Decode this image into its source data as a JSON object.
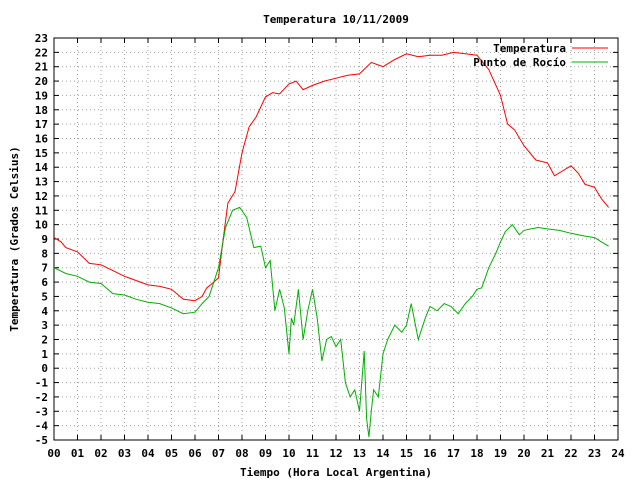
{
  "chart_data": {
    "type": "line",
    "title": "Temperatura 10/11/2009",
    "xlabel": "Tiempo (Hora Local Argentina)",
    "ylabel": "Temperatura (Grados Celsius)",
    "xlim": [
      0,
      24
    ],
    "ylim": [
      -5,
      23
    ],
    "xticks": [
      "00",
      "01",
      "02",
      "03",
      "04",
      "05",
      "06",
      "07",
      "08",
      "09",
      "10",
      "11",
      "12",
      "13",
      "14",
      "15",
      "16",
      "17",
      "18",
      "19",
      "20",
      "21",
      "22",
      "23",
      "24"
    ],
    "yticks": [
      -5,
      -4,
      -3,
      -2,
      -1,
      0,
      1,
      2,
      3,
      4,
      5,
      6,
      7,
      8,
      9,
      10,
      11,
      12,
      13,
      14,
      15,
      16,
      17,
      18,
      19,
      20,
      21,
      22,
      23
    ],
    "grid": true,
    "legend_position": "top-right",
    "series": [
      {
        "name": "Temperatura",
        "color": "#ff0000",
        "x": [
          0,
          0.3,
          0.5,
          1,
          1.5,
          2,
          2.5,
          3,
          3.5,
          4,
          4.5,
          5,
          5.5,
          6,
          6.3,
          6.5,
          6.8,
          7,
          7.2,
          7.4,
          7.7,
          8,
          8.3,
          8.6,
          9,
          9.3,
          9.6,
          10,
          10.3,
          10.6,
          11,
          11.5,
          12,
          12.5,
          13,
          13.5,
          14,
          14.5,
          15,
          15.5,
          16,
          16.5,
          17,
          17.5,
          18,
          18.5,
          19,
          19.3,
          19.6,
          20,
          20.5,
          21,
          21.3,
          21.6,
          22,
          22.3,
          22.6,
          23,
          23.3,
          23.6
        ],
        "y": [
          9.1,
          8.8,
          8.4,
          8.1,
          7.3,
          7.2,
          6.8,
          6.4,
          6.1,
          5.8,
          5.7,
          5.5,
          4.8,
          4.7,
          5.0,
          5.6,
          6.0,
          6.3,
          9.0,
          11.5,
          12.3,
          15.0,
          16.8,
          17.5,
          18.9,
          19.2,
          19.1,
          19.8,
          20.0,
          19.4,
          19.7,
          20.0,
          20.2,
          20.4,
          20.5,
          21.3,
          21.0,
          21.5,
          21.9,
          21.7,
          21.8,
          21.8,
          22.0,
          21.9,
          21.8,
          20.8,
          19.0,
          17.0,
          16.6,
          15.5,
          14.5,
          14.3,
          13.4,
          13.7,
          14.1,
          13.6,
          12.8,
          12.6,
          11.8,
          11.2
        ]
      },
      {
        "name": "Punto de Rocío",
        "color": "#00b000",
        "x": [
          0,
          0.5,
          1,
          1.5,
          2,
          2.5,
          3,
          3.5,
          4,
          4.5,
          5,
          5.5,
          6,
          6.3,
          6.6,
          7,
          7.3,
          7.6,
          7.9,
          8.2,
          8.5,
          8.8,
          9,
          9.2,
          9.4,
          9.6,
          9.8,
          10,
          10.1,
          10.2,
          10.4,
          10.6,
          10.8,
          11,
          11.2,
          11.4,
          11.6,
          11.8,
          12,
          12.2,
          12.4,
          12.6,
          12.8,
          13,
          13.2,
          13.3,
          13.4,
          13.5,
          13.6,
          13.8,
          14,
          14.2,
          14.5,
          14.8,
          15,
          15.2,
          15.5,
          15.8,
          16,
          16.3,
          16.6,
          16.9,
          17.2,
          17.5,
          17.8,
          18,
          18.2,
          18.5,
          18.8,
          19,
          19.2,
          19.5,
          19.8,
          20,
          20.3,
          20.6,
          21,
          21.5,
          22,
          22.3,
          22.6,
          23,
          23.3,
          23.6
        ],
        "y": [
          7.0,
          6.6,
          6.4,
          6.0,
          5.9,
          5.2,
          5.1,
          4.8,
          4.6,
          4.5,
          4.2,
          3.8,
          3.9,
          4.5,
          5.0,
          7.0,
          9.8,
          11.0,
          11.2,
          10.5,
          8.4,
          8.5,
          7.0,
          7.5,
          4.0,
          5.5,
          4.2,
          1.0,
          3.5,
          3.0,
          5.5,
          2.0,
          4.0,
          5.5,
          3.5,
          0.5,
          2.0,
          2.2,
          1.5,
          2.0,
          -1.0,
          -2.0,
          -1.5,
          -3.0,
          1.2,
          -3.5,
          -4.8,
          -3.0,
          -1.5,
          -2.0,
          1.0,
          2.0,
          3.0,
          2.5,
          3.0,
          4.5,
          2.0,
          3.5,
          4.3,
          4.0,
          4.5,
          4.3,
          3.8,
          4.5,
          5.0,
          5.5,
          5.6,
          7.0,
          8.0,
          8.8,
          9.5,
          10.0,
          9.3,
          9.6,
          9.7,
          9.8,
          9.7,
          9.6,
          9.4,
          9.3,
          9.2,
          9.1,
          8.8,
          8.5
        ]
      }
    ]
  }
}
